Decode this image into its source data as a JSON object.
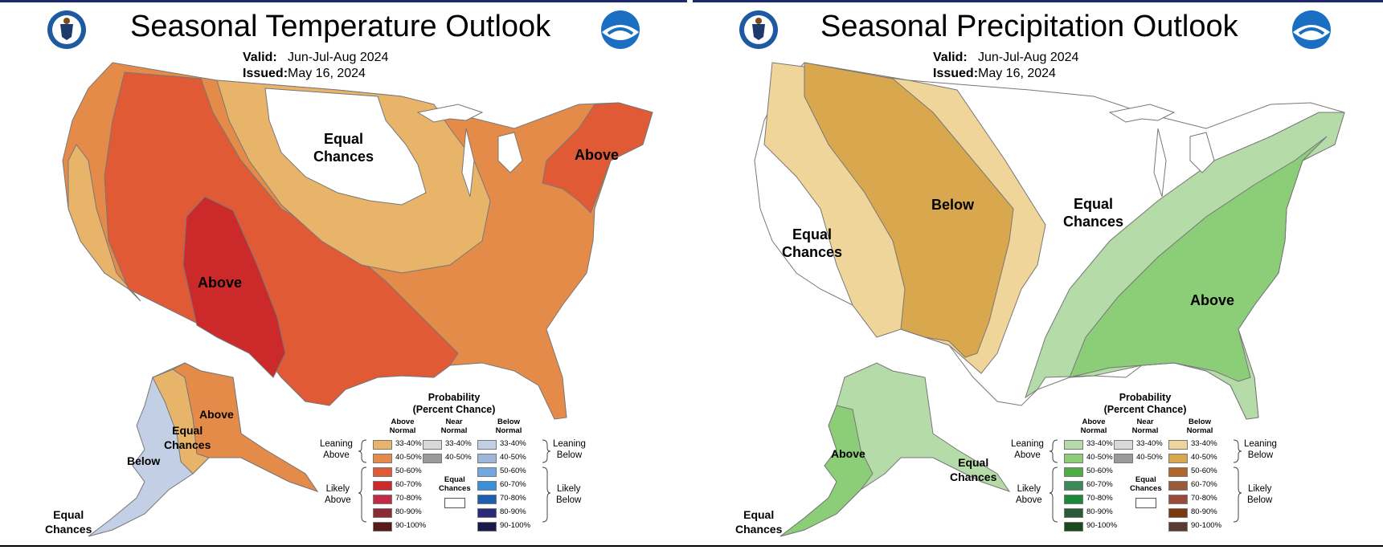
{
  "temperature": {
    "title": "Seasonal Temperature Outlook",
    "valid_label": "Valid:",
    "valid_value": "Jun-Jul-Aug 2024",
    "issued_label": "Issued:",
    "issued_value": "May 16, 2024",
    "labels": {
      "equal_chances_north": "Equal\nChances",
      "above_northeast": "Above",
      "above_southwest": "Above",
      "alaska_above": "Above",
      "alaska_equal": "Equal\nChances",
      "alaska_below": "Below",
      "hawaii_equal": "Equal\nChances"
    }
  },
  "precipitation": {
    "title": "Seasonal Precipitation Outlook",
    "valid_label": "Valid:",
    "valid_value": "Jun-Jul-Aug 2024",
    "issued_label": "Issued:",
    "issued_value": "May 16, 2024",
    "labels": {
      "below_west": "Below",
      "equal_chances_west": "Equal\nChances",
      "equal_chances_central": "Equal\nChances",
      "above_southeast": "Above",
      "alaska_above": "Above",
      "alaska_equal": "Equal\nChances",
      "hawaii_equal": "Equal\nChances"
    }
  },
  "legend": {
    "title_line1": "Probability",
    "title_line2": "(Percent Chance)",
    "temp_above_header": "Above\nNormal",
    "temp_below_header": "Below\nNormal",
    "precip_above_header": "Above\nNormal",
    "precip_below_header": "Below\nNormal",
    "near_header": "Near\nNormal",
    "leaning_above": "Leaning\nAbove",
    "likely_above": "Likely\nAbove",
    "leaning_below": "Leaning\nBelow",
    "likely_below": "Likely\nBelow",
    "equal_chances": "Equal\nChances",
    "ranges": [
      "33-40%",
      "40-50%",
      "50-60%",
      "60-70%",
      "70-80%",
      "80-90%",
      "90-100%"
    ],
    "near_ranges": [
      "33-40%",
      "40-50%"
    ],
    "colors": {
      "temp_above": [
        "#e8b46a",
        "#e58b4a",
        "#e05a36",
        "#cc2a2a",
        "#c22a48",
        "#8c2a35",
        "#5a1a1a"
      ],
      "temp_below": [
        "#c3cfe4",
        "#9eb6da",
        "#72a8e0",
        "#3a90d8",
        "#1a5fb0",
        "#2a2a7a",
        "#1a1a4a"
      ],
      "precip_above": [
        "#b4dba8",
        "#8ccd78",
        "#4caf44",
        "#3a8a58",
        "#1a8a3a",
        "#2a5a3a",
        "#1a4a1a"
      ],
      "precip_below": [
        "#f0d59a",
        "#d9a84e",
        "#b0662a",
        "#9a5a3a",
        "#9a4a3a",
        "#7a3a10",
        "#5a3a30"
      ],
      "near": [
        "#d8d8d8",
        "#9a9a9a"
      ]
    }
  }
}
